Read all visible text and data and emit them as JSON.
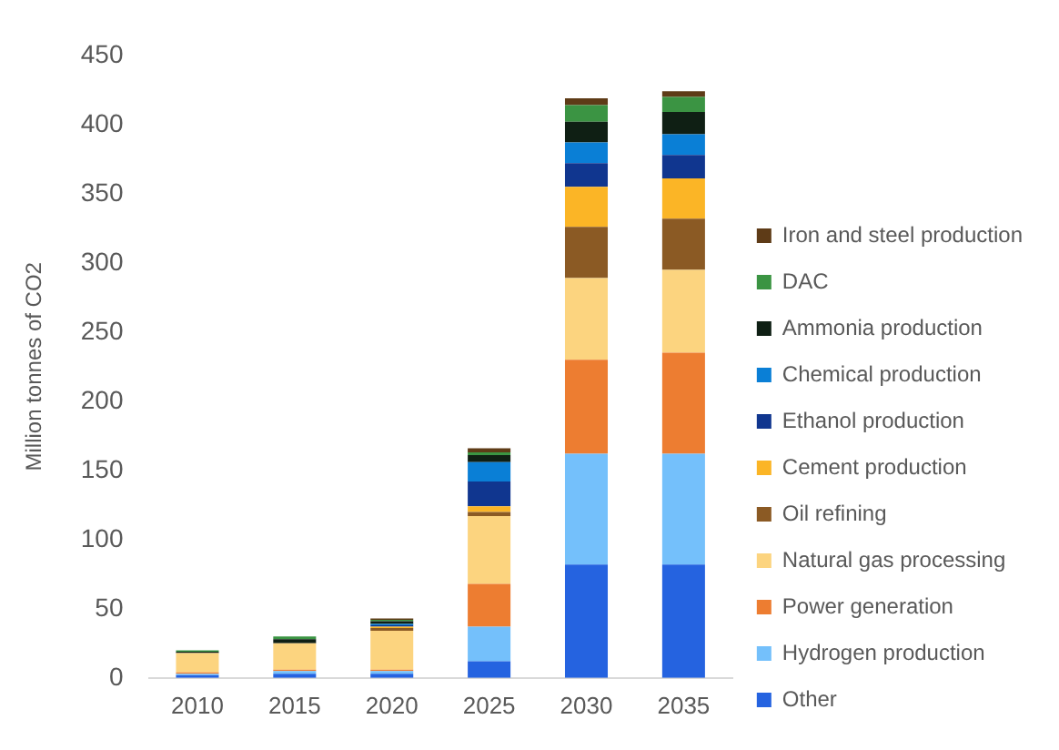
{
  "chart_data": {
    "type": "bar",
    "stacked": true,
    "ylabel": "Million tonnes of CO2",
    "categories": [
      "2010",
      "2015",
      "2020",
      "2025",
      "2030",
      "2035"
    ],
    "ylim": [
      0,
      450
    ],
    "yticks": [
      0,
      50,
      100,
      150,
      200,
      250,
      300,
      350,
      400,
      450
    ],
    "grid": false,
    "legend": "right",
    "series": [
      {
        "name": "Other",
        "color": "#2563e0",
        "values": [
          2,
          3,
          3,
          12,
          82,
          82
        ]
      },
      {
        "name": "Hydrogen production",
        "color": "#74c0fb",
        "values": [
          1,
          2,
          2,
          25,
          80,
          80
        ]
      },
      {
        "name": "Power generation",
        "color": "#ed7d31",
        "values": [
          1,
          1,
          1,
          31,
          68,
          73
        ]
      },
      {
        "name": "Natural gas processing",
        "color": "#fcd47f",
        "values": [
          14,
          19,
          28,
          49,
          59,
          60
        ]
      },
      {
        "name": "Oil refining",
        "color": "#8b5a24",
        "values": [
          0,
          0,
          2,
          3,
          37,
          37
        ]
      },
      {
        "name": "Cement production",
        "color": "#fbb526",
        "values": [
          0,
          0,
          1,
          4,
          29,
          29
        ]
      },
      {
        "name": "Ethanol production",
        "color": "#10368f",
        "values": [
          0,
          0,
          1,
          18,
          17,
          17
        ]
      },
      {
        "name": "Chemical production",
        "color": "#0a7fd6",
        "values": [
          0,
          0,
          1,
          14,
          15,
          15
        ]
      },
      {
        "name": "Ammonia production",
        "color": "#0f1f14",
        "values": [
          1,
          3,
          2,
          5,
          15,
          16
        ]
      },
      {
        "name": "DAC",
        "color": "#3b9443",
        "values": [
          1,
          2,
          1,
          2,
          12,
          11
        ]
      },
      {
        "name": "Iron and steel production",
        "color": "#5e3b17",
        "values": [
          0,
          0,
          1,
          3,
          5,
          4
        ]
      }
    ]
  }
}
